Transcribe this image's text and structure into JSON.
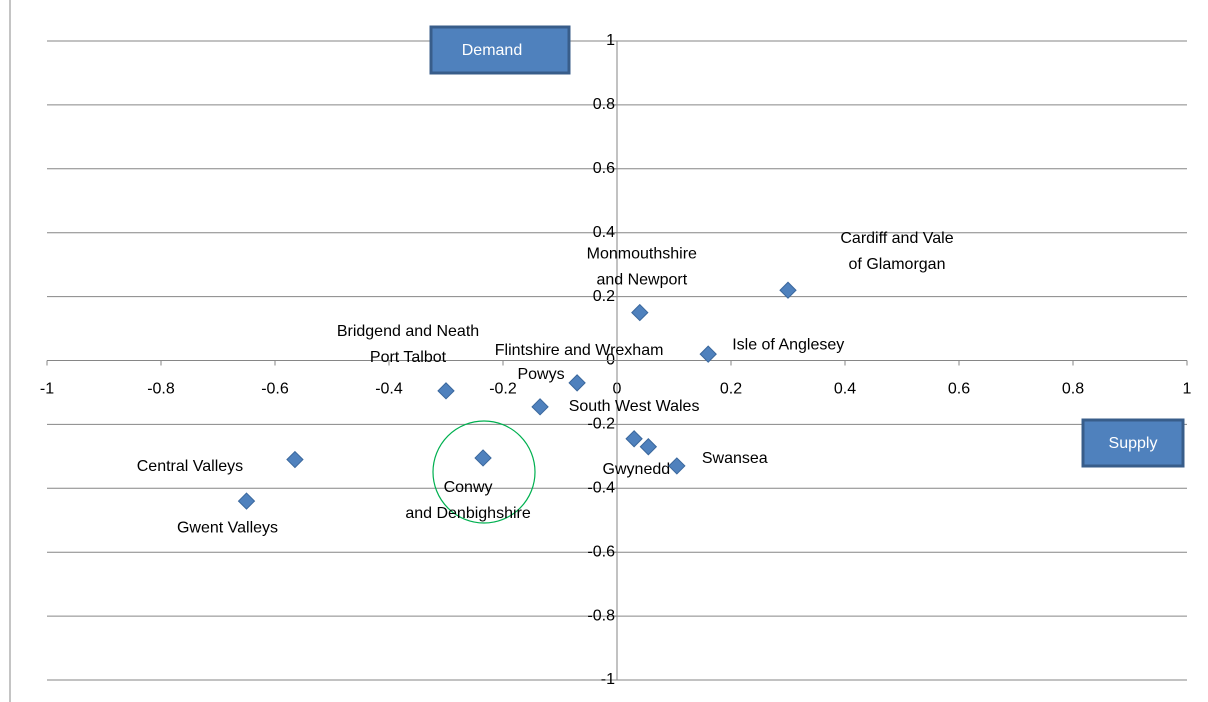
{
  "chart_data": {
    "type": "scatter",
    "point_labels": [
      "Cardiff and Vale of Glamorgan",
      "Monmouthshire and Newport",
      "Isle of Anglesey",
      "Flintshire and Wrexham",
      "Bridgend and Neath Port Talbot",
      "Powys",
      "South West Wales",
      "Central Valleys",
      "Gwent Valleys",
      "Conwy and Denbighshire",
      "Gwynedd",
      "Swansea"
    ],
    "x": [
      0.3,
      0.04,
      0.16,
      -0.07,
      -0.3,
      -0.135,
      0.03,
      -0.565,
      -0.65,
      -0.235,
      0.055,
      0.105
    ],
    "values": [
      0.22,
      0.15,
      0.02,
      -0.07,
      -0.095,
      -0.145,
      -0.245,
      -0.31,
      -0.44,
      -0.305,
      -0.27,
      -0.33
    ],
    "color": "#4f81bd",
    "xlim": [
      -1,
      1
    ],
    "xticks": [
      -1,
      -0.8,
      -0.6,
      -0.4,
      -0.2,
      0,
      0.2,
      0.4,
      0.6,
      0.8,
      1
    ],
    "ylim": [
      -1,
      1
    ],
    "yticks": [
      -1,
      -0.8,
      -0.6,
      -0.4,
      -0.2,
      0,
      0.2,
      0.4,
      0.6,
      0.8,
      1
    ],
    "grid": true,
    "annotations": [
      "Demand",
      "Supply"
    ]
  }
}
